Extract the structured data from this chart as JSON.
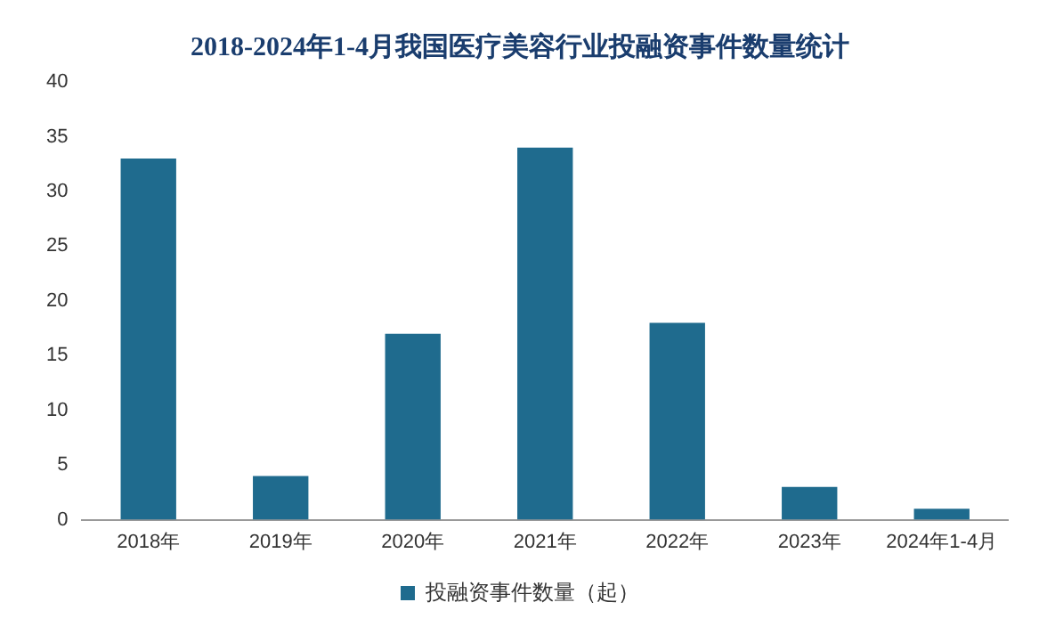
{
  "chart_data": {
    "type": "bar",
    "title": "2018-2024年1-4月我国医疗美容行业投融资事件数量统计",
    "categories": [
      "2018年",
      "2019年",
      "2020年",
      "2021年",
      "2022年",
      "2023年",
      "2024年1-4月"
    ],
    "series": [
      {
        "name": "投融资事件数量（起）",
        "color": "#1f6b8e",
        "values": [
          33,
          4,
          17,
          34,
          18,
          3,
          1
        ]
      }
    ],
    "ylim": [
      0,
      40
    ],
    "yticks": [
      0,
      5,
      10,
      15,
      20,
      25,
      30,
      35,
      40
    ],
    "grid": false,
    "legend": "bottom"
  }
}
